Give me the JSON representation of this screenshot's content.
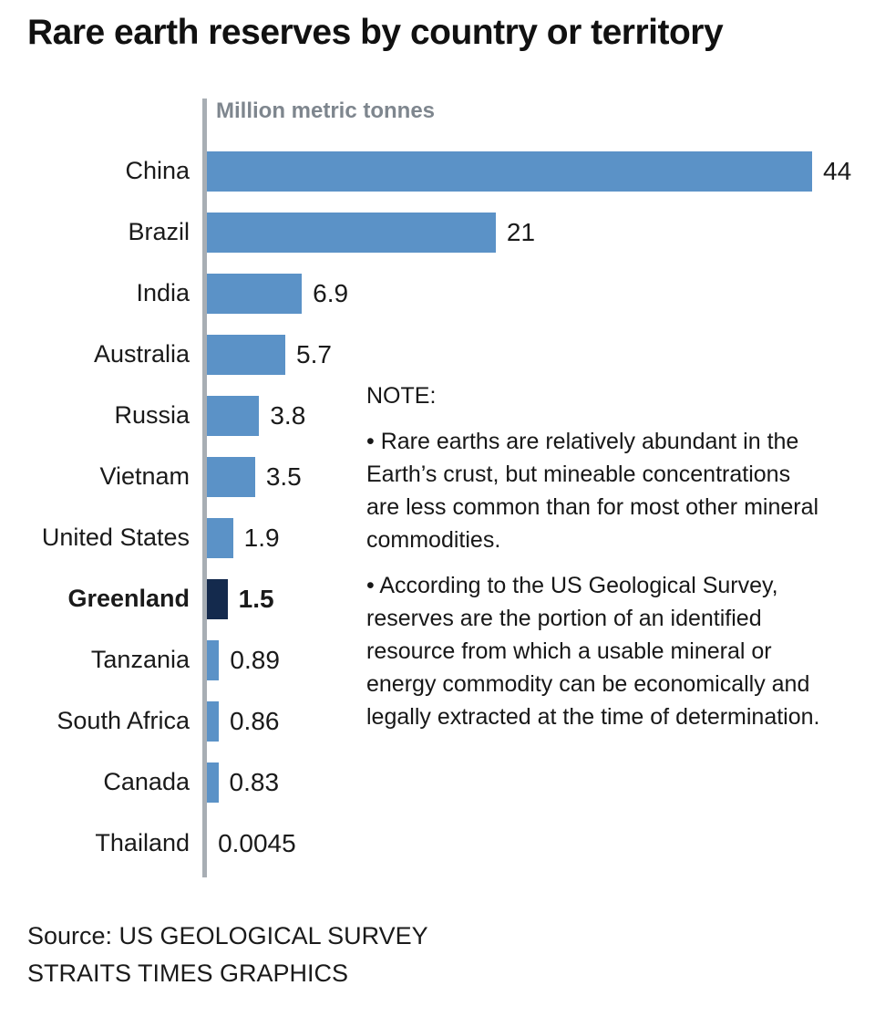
{
  "title": "Rare earth reserves by country or territory",
  "chart_data": {
    "type": "bar",
    "orientation": "horizontal",
    "axis_label": "Million metric tonnes",
    "xlim": [
      0,
      44
    ],
    "categories": [
      "China",
      "Brazil",
      "India",
      "Australia",
      "Russia",
      "Vietnam",
      "United States",
      "Greenland",
      "Tanzania",
      "South Africa",
      "Canada",
      "Thailand"
    ],
    "values": [
      44,
      21,
      6.9,
      5.7,
      3.8,
      3.5,
      1.9,
      1.5,
      0.89,
      0.86,
      0.83,
      0.0045
    ],
    "value_labels": [
      "44",
      "21",
      "6.9",
      "5.7",
      "3.8",
      "3.5",
      "1.9",
      "1.5",
      "0.89",
      "0.86",
      "0.83",
      "0.0045"
    ],
    "highlighted_category": "Greenland",
    "bar_color": "#5b92c7",
    "highlight_color": "#142a4d",
    "axis_color": "#a8aeb4",
    "legend": "none",
    "grid": false
  },
  "note": {
    "heading": "NOTE:",
    "bullet": "•",
    "bullets": [
      "Rare earths are relatively abundant in the Earth’s crust, but mineable concentrations are less common than for most other mineral commodities.",
      "According to the US Geological Survey, reserves are the portion of an identified resource from which a usable mineral or energy commodity can be economically and legally extracted at the time of determination."
    ]
  },
  "source": {
    "line1": "Source: US GEOLOGICAL SURVEY",
    "line2": "STRAITS TIMES GRAPHICS"
  }
}
